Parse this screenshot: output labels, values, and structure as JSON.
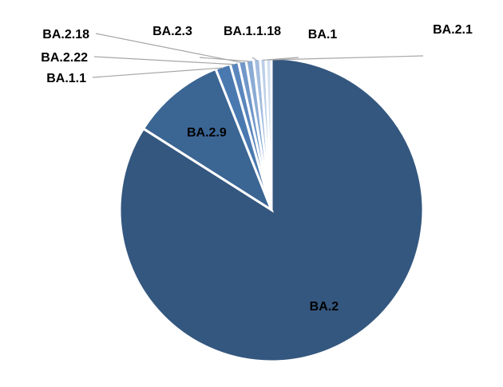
{
  "chart_data": {
    "type": "pie",
    "title": "",
    "start_angle_deg": 0,
    "direction": "clockwise",
    "slices": [
      {
        "label": "BA.2",
        "value": 84.0,
        "color": "#34577f"
      },
      {
        "label": "BA.2.9",
        "value": 10.0,
        "color": "#3b6593"
      },
      {
        "label": "BA.1.1",
        "value": 1.6,
        "color": "#4a79b0"
      },
      {
        "label": "BA.2.22",
        "value": 0.9,
        "color": "#5a86bd"
      },
      {
        "label": "BA.2.18",
        "value": 0.8,
        "color": "#7097c8"
      },
      {
        "label": "BA.2.3",
        "value": 0.8,
        "color": "#8aabd4"
      },
      {
        "label": "BA.1.1.18",
        "value": 0.7,
        "color": "#a3bddf"
      },
      {
        "label": "BA.1",
        "value": 0.6,
        "color": "#bccfe8"
      },
      {
        "label": "BA.2.1",
        "value": 0.6,
        "color": "#d2dff0"
      }
    ],
    "legend": "none",
    "label_style": "outside labels with leader lines for small slices"
  }
}
